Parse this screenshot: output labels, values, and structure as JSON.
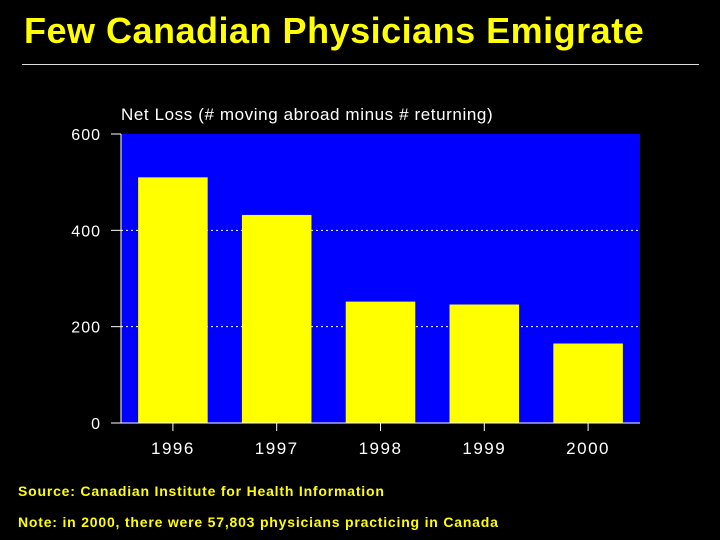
{
  "slide": {
    "title": "Few Canadian Physicians Emigrate",
    "source": "Source: Canadian Institute for Health Information",
    "note": "Note: in 2000, there were 57,803 physicians practicing in Canada"
  },
  "colors": {
    "background": "#000000",
    "plot_area": "#0000ff",
    "bar": "#ffff00",
    "text_accent": "#ffff00",
    "text_axis": "#ffffff"
  },
  "chart_data": {
    "type": "bar",
    "title": "Net Loss (# moving abroad minus # returning)",
    "categories": [
      "1996",
      "1997",
      "1998",
      "1999",
      "2000"
    ],
    "values": [
      510,
      432,
      252,
      246,
      165
    ],
    "xlabel": "",
    "ylabel": "",
    "ylim": [
      0,
      600
    ],
    "yticks": [
      0,
      200,
      400,
      600
    ],
    "grid": true
  }
}
